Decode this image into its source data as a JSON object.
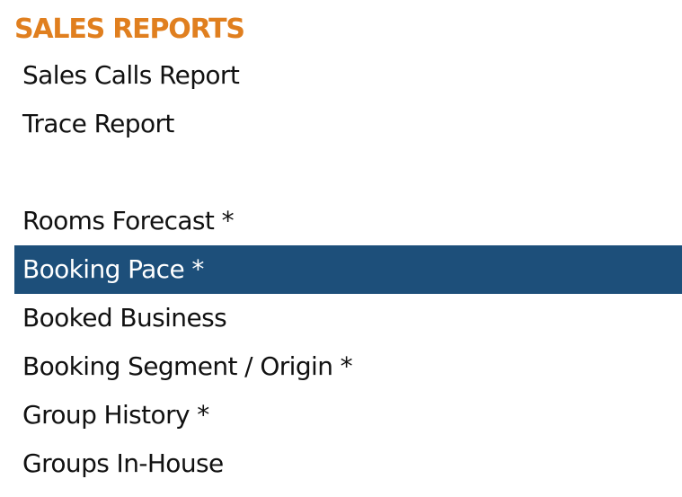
{
  "section": {
    "title": "SALES REPORTS"
  },
  "menu": {
    "items": [
      {
        "label": "Sales Calls Report"
      },
      {
        "label": "Trace Report"
      },
      {
        "label": ""
      },
      {
        "label": "Rooms Forecast *"
      },
      {
        "label": "Booking Pace *",
        "selected": true
      },
      {
        "label": "Booked Business"
      },
      {
        "label": "Booking Segment / Origin *"
      },
      {
        "label": "Group History *"
      },
      {
        "label": "Groups In-House"
      }
    ]
  },
  "colors": {
    "title": "#e07f1f",
    "selected_bg": "#1d4f7a",
    "selected_text": "#ffffff",
    "text": "#111111"
  }
}
